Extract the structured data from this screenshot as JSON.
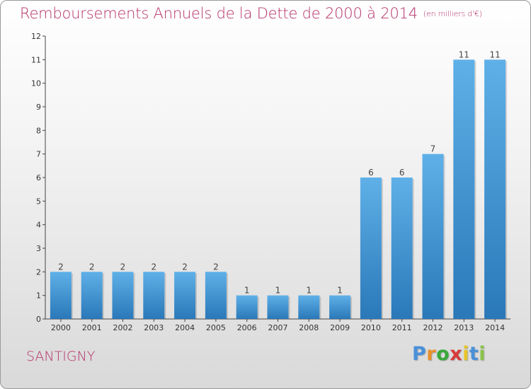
{
  "title": "Remboursements Annuels de la Dette de 2000 à 2014",
  "subtitle": "(en milliers d'€)",
  "commune": "SANTIGNY",
  "logo": {
    "letters": [
      "P",
      "r",
      "o",
      "x",
      "i",
      "t",
      "i"
    ],
    "colors": [
      "#4a90d9",
      "#e8902a",
      "#3aa83a",
      "#d63a3a",
      "#e8c52a",
      "#4a90d9",
      "#8bc34a"
    ]
  },
  "colors": {
    "bar_dark": "#2a78b8",
    "bar_light": "#5fb0e8",
    "title": "#b5326a"
  },
  "chart_data": {
    "type": "bar",
    "categories": [
      "2000",
      "2001",
      "2002",
      "2003",
      "2004",
      "2005",
      "2006",
      "2007",
      "2008",
      "2009",
      "2010",
      "2011",
      "2012",
      "2013",
      "2014"
    ],
    "values": [
      2,
      2,
      2,
      2,
      2,
      2,
      1,
      1,
      1,
      1,
      6,
      6,
      7,
      11,
      11
    ],
    "data_labels": [
      "2",
      "2",
      "2",
      "2",
      "2",
      "2",
      "1",
      "1",
      "1",
      "1",
      "6",
      "6",
      "7",
      "11",
      "11"
    ],
    "yticks": [
      "0",
      "1",
      "2",
      "3",
      "4",
      "5",
      "6",
      "7",
      "8",
      "9",
      "10",
      "11",
      "12"
    ],
    "ylim": [
      0,
      12
    ],
    "title": "Remboursements Annuels de la Dette de 2000 à 2014",
    "xlabel": "",
    "ylabel": "",
    "grid": false,
    "legend": "none"
  }
}
